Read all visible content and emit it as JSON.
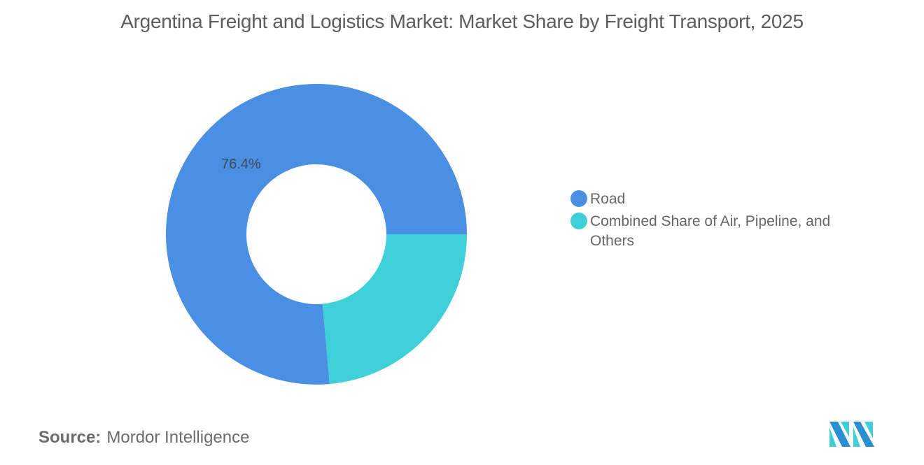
{
  "title": "Argentina Freight and Logistics Market: Market Share by Freight Transport, 2025",
  "chart": {
    "slice_label": "76.4%"
  },
  "legend": {
    "items": [
      {
        "label": "Road",
        "color": "#4a8fe2"
      },
      {
        "label": "Combined Share of Air, Pipeline, and Others",
        "color": "#3ecfd8"
      }
    ]
  },
  "footer": {
    "source_label": "Source:",
    "source_value": "Mordor Intelligence",
    "logo": "mordor-intelligence-logo"
  },
  "colors": {
    "road": "#4a8fe2",
    "others": "#3ecfd8",
    "title_text": "#5d5d5d"
  },
  "chart_data": {
    "type": "pie",
    "variant": "donut",
    "title": "Argentina Freight and Logistics Market: Market Share by Freight Transport, 2025",
    "categories": [
      "Road",
      "Combined Share of Air, Pipeline, and Others"
    ],
    "values": [
      76.4,
      23.6
    ],
    "unit": "%",
    "data_labels": [
      "76.4%",
      ""
    ],
    "legend_position": "right",
    "colors": [
      "#4a8fe2",
      "#3ecfd8"
    ],
    "source": "Mordor Intelligence"
  }
}
